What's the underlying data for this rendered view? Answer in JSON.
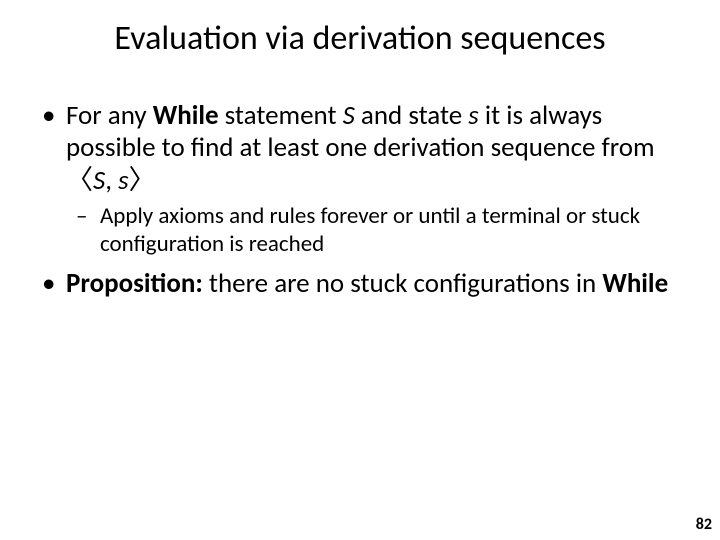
{
  "slide": {
    "title": "Evaluation via derivation sequences",
    "page_number": "82",
    "bullets": {
      "b1": {
        "t1": "For any ",
        "t2": "While",
        "t3": " statement ",
        "t4": "S",
        "t5": " and state ",
        "t6": "s",
        "t7": " it is always possible to find at least one derivation sequence from 〈",
        "t8": "S",
        "t9": ", ",
        "t10": "s",
        "t11": "〉"
      },
      "b1_sub1": "Apply axioms and rules forever or until a terminal or stuck configuration is reached",
      "b2": {
        "t1": "Proposition:",
        "t2": " there are no stuck configurations in ",
        "t3": "While"
      }
    }
  }
}
